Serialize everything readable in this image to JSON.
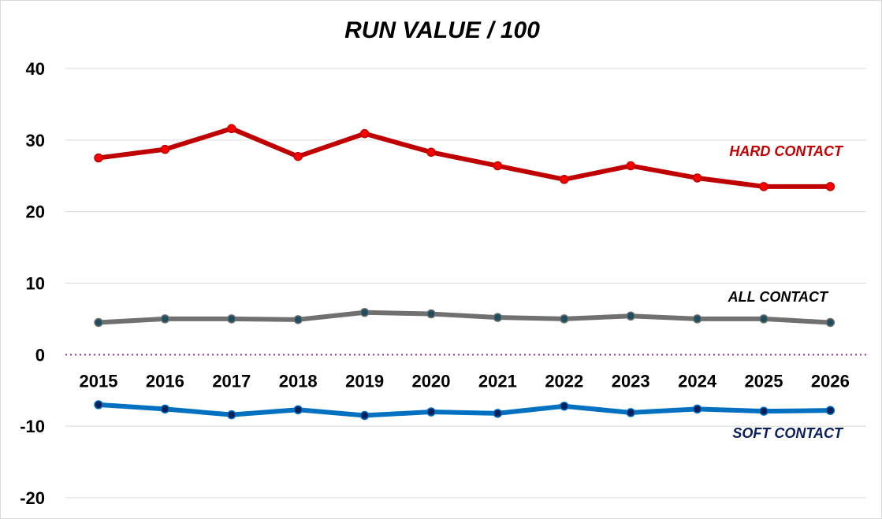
{
  "chart_data": {
    "type": "line",
    "title": "RUN VALUE / 100",
    "xlabel": "",
    "ylabel": "",
    "ylim": [
      -20,
      40
    ],
    "y_ticks": [
      -20,
      -10,
      0,
      10,
      20,
      30,
      40
    ],
    "y_tick_labels": [
      "-20",
      "-10",
      "0",
      "10",
      "20",
      "30",
      "40"
    ],
    "grid": true,
    "zero_line": {
      "style": "dotted",
      "color": "#9b2d9b"
    },
    "categories": [
      "2015",
      "2016",
      "2017",
      "2018",
      "2019",
      "2020",
      "2021",
      "2022",
      "2023",
      "2024",
      "2025",
      "2026"
    ],
    "series": [
      {
        "name": "HARD CONTACT",
        "color": "#c00000",
        "marker_color": "#ff0000",
        "values": [
          27.5,
          28.7,
          31.6,
          27.7,
          30.9,
          28.3,
          26.4,
          24.5,
          26.4,
          24.7,
          23.5,
          23.5
        ]
      },
      {
        "name": "ALL CONTACT",
        "color": "#707070",
        "marker_color": "#1f4e5f",
        "values": [
          4.5,
          5.0,
          5.0,
          4.9,
          5.9,
          5.7,
          5.2,
          5.0,
          5.4,
          5.0,
          5.0,
          4.5
        ]
      },
      {
        "name": "SOFT CONTACT",
        "color": "#0070c0",
        "marker_color": "#0b1f5c",
        "label_color": "#0b1f5c",
        "values": [
          -7.0,
          -7.6,
          -8.4,
          -7.7,
          -8.5,
          -8.0,
          -8.2,
          -7.2,
          -8.1,
          -7.6,
          -7.9,
          -7.8
        ]
      }
    ]
  }
}
